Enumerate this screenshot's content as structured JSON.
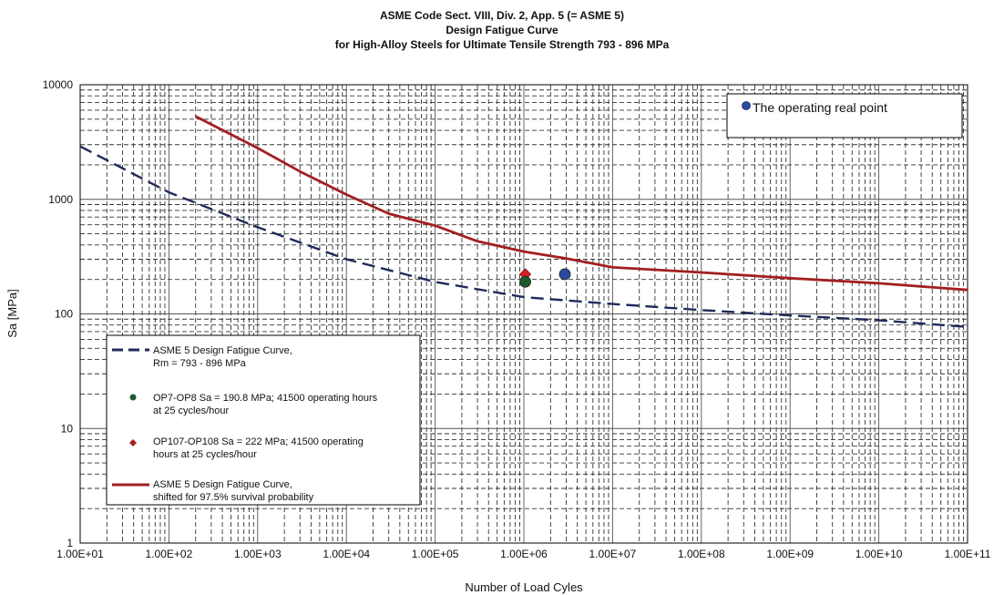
{
  "chart_data": {
    "type": "line",
    "title": [
      "ASME Code Sect. VIII, Div. 2, App. 5 (= ASME 5)",
      "Design Fatigue Curve",
      "for  High-Alloy Steels for Ultimate Tensile Strength  793 - 896 MPa"
    ],
    "xlabel": "Number of Load Cyles",
    "ylabel": "Sa [MPa]",
    "x_scale": "log",
    "y_scale": "log",
    "xlim": [
      10,
      100000000000
    ],
    "ylim": [
      1,
      10000
    ],
    "grid": true,
    "x_tick_labels": [
      "1.00E+01",
      "1.00E+02",
      "1.00E+03",
      "1.00E+04",
      "1.00E+05",
      "1.00E+06",
      "1.00E+07",
      "1.00E+08",
      "1.00E+09",
      "1.00E+10",
      "1.00E+11"
    ],
    "x_tick_values": [
      10,
      100,
      1000,
      10000,
      100000,
      1000000,
      10000000,
      100000000,
      1000000000,
      10000000000,
      100000000000
    ],
    "y_tick_labels": [
      "1",
      "10",
      "100",
      "1000",
      "10000"
    ],
    "y_tick_values": [
      1,
      10,
      100,
      1000,
      10000
    ],
    "series": [
      {
        "name": "ASME 5 Design Fatigue Curve, Rm = 793 - 896 MPa",
        "legend_lines": [
          "ASME 5 Design Fatigue Curve,",
          "Rm = 793 - 896 MPa"
        ],
        "color": "#1f2a5a",
        "style": "dashed",
        "points": [
          [
            10,
            2900
          ],
          [
            100,
            1150
          ],
          [
            1000,
            570
          ],
          [
            10000,
            300
          ],
          [
            100000,
            190
          ],
          [
            1000000,
            140
          ],
          [
            10000000,
            122
          ],
          [
            100000000,
            108
          ],
          [
            1000000000,
            97
          ],
          [
            10000000000,
            88
          ],
          [
            100000000000,
            77
          ]
        ]
      },
      {
        "name": "ASME 5 Design Fatigue Curve, shifted for 97.5% survival probability",
        "legend_lines": [
          "ASME 5 Design Fatigue Curve,",
          "shifted for 97.5% survival probability"
        ],
        "color": "#a31f1f",
        "style": "solid",
        "points": [
          [
            200,
            5300
          ],
          [
            1000,
            2800
          ],
          [
            3000,
            1750
          ],
          [
            10000,
            1100
          ],
          [
            30000,
            750
          ],
          [
            100000,
            590
          ],
          [
            300000,
            430
          ],
          [
            1000000,
            350
          ],
          [
            3000000,
            305
          ],
          [
            10000000,
            255
          ],
          [
            100000000,
            230
          ],
          [
            1000000000,
            205
          ],
          [
            10000000000,
            185
          ],
          [
            100000000000,
            162
          ]
        ]
      }
    ],
    "markers": [
      {
        "legend_lines": [
          "OP7-OP8 Sa = 190.8 MPa; 41500 operating hours",
          "at 25 cycles/hour"
        ],
        "x": 1037500,
        "y": 190.8,
        "shape": "circle",
        "color": "#1e5a2a"
      },
      {
        "legend_lines": [
          "OP107-OP108 Sa = 222 MPa; 41500 operating",
          "hours at 25 cycles/hour"
        ],
        "x": 1037500,
        "y": 222,
        "shape": "diamond",
        "color": "#d42020"
      },
      {
        "legend_lines": [
          "The operating real point"
        ],
        "x": 2900000,
        "y": 222,
        "shape": "circle",
        "color": "#2a4aa0"
      }
    ],
    "legend_placement": [
      "bottom-left",
      "top-right"
    ]
  }
}
